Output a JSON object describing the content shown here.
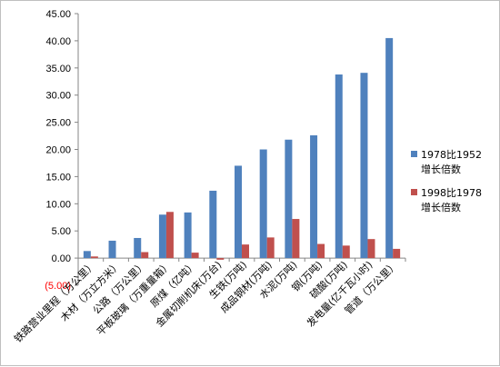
{
  "chart_data": {
    "type": "bar",
    "categories": [
      "铁路营业里程（万公里）",
      "木材（万立方米）",
      "公路（万公里）",
      "平板玻璃（万重量箱）",
      "原煤（亿吨）",
      "金属切削机床(万台)",
      "生铁(万吨)",
      "成品钢材(万吨)",
      "水泥(万吨)",
      "钢(万吨)",
      "硫酸(万吨)",
      "发电量(亿千瓦小时)",
      "管道（万公里）"
    ],
    "series": [
      {
        "name_lines": [
          "1978比1952",
          "增长倍数"
        ],
        "color": "#4f81bd",
        "values": [
          1.3,
          3.2,
          3.7,
          8.0,
          8.4,
          12.4,
          17.0,
          20.0,
          21.8,
          22.6,
          33.8,
          34.1,
          40.5
        ]
      },
      {
        "name_lines": [
          "1998比1978",
          "增长倍数"
        ],
        "color": "#c0504d",
        "values": [
          0.3,
          0.0,
          1.1,
          8.5,
          1.0,
          -0.3,
          2.5,
          3.8,
          7.2,
          2.6,
          2.3,
          3.5,
          1.7
        ]
      }
    ],
    "y_ticks": [
      "(5.00)",
      "0.00",
      "5.00",
      "10.00",
      "15.00",
      "20.00",
      "25.00",
      "30.00",
      "35.00",
      "40.00",
      "45.00"
    ],
    "ylim": [
      -5,
      45
    ],
    "legend_position": "right",
    "grid": false
  }
}
